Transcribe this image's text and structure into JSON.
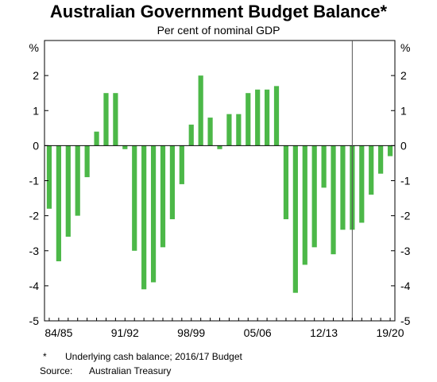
{
  "chart_data": {
    "type": "bar",
    "title": "Australian Government Budget Balance*",
    "subtitle": "Per cent of nominal GDP",
    "unit_left": "%",
    "unit_right": "%",
    "ylim": [
      -5,
      3
    ],
    "yticks": [
      -5,
      -4,
      -3,
      -2,
      -1,
      0,
      1,
      2
    ],
    "x_tick_labels": [
      "84/85",
      "91/92",
      "98/99",
      "05/06",
      "12/13",
      "19/20"
    ],
    "categories": [
      "83/84",
      "84/85",
      "85/86",
      "86/87",
      "87/88",
      "88/89",
      "89/90",
      "90/91",
      "91/92",
      "92/93",
      "93/94",
      "94/95",
      "95/96",
      "96/97",
      "97/98",
      "98/99",
      "99/00",
      "00/01",
      "01/02",
      "02/03",
      "03/04",
      "04/05",
      "05/06",
      "06/07",
      "07/08",
      "08/09",
      "09/10",
      "10/11",
      "11/12",
      "12/13",
      "13/14",
      "14/15",
      "15/16",
      "16/17",
      "17/18",
      "18/19",
      "19/20"
    ],
    "values": [
      -1.8,
      -3.3,
      -2.6,
      -2.0,
      -0.9,
      0.4,
      1.5,
      1.5,
      -0.1,
      -3.0,
      -4.1,
      -3.9,
      -2.9,
      -2.1,
      -1.1,
      0.6,
      2.0,
      0.8,
      -0.1,
      0.9,
      0.9,
      1.5,
      1.6,
      1.6,
      1.7,
      -2.1,
      -4.2,
      -3.4,
      -2.9,
      -1.2,
      -3.1,
      -2.4,
      -2.4,
      -2.2,
      -1.4,
      -0.8,
      -0.3
    ],
    "forecast_divider_after": "15/16",
    "bar_color": "#4cb848",
    "grid": false
  },
  "notes": {
    "footnote_mark": "*",
    "footnote_text": "Underlying cash balance; 2016/17 Budget",
    "source_label": "Source:",
    "source_text": "Australian Treasury"
  }
}
